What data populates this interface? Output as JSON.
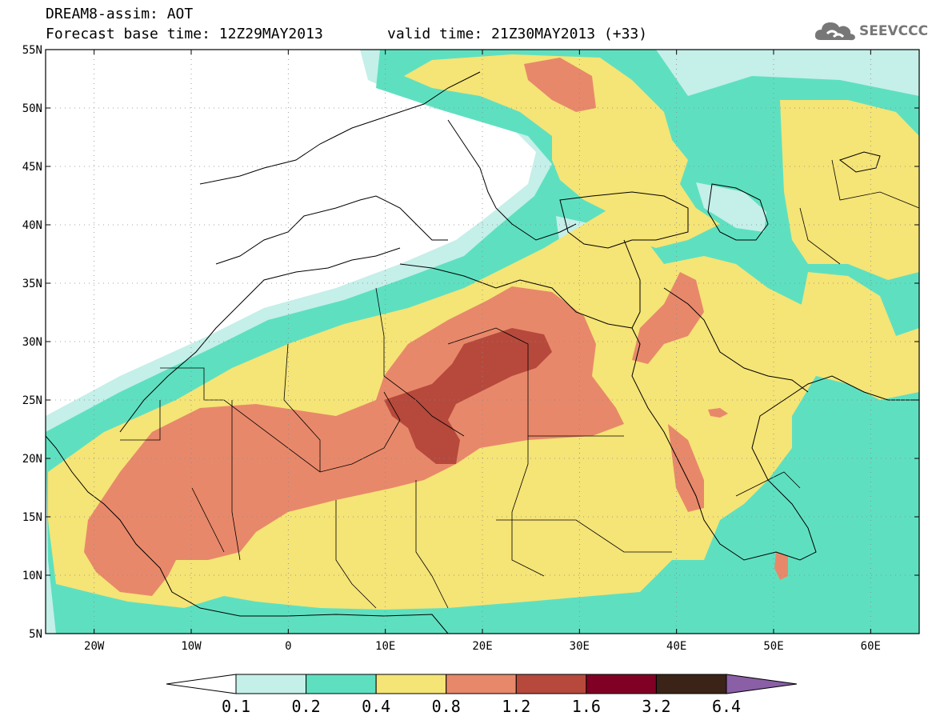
{
  "title": {
    "line1": "DREAM8-assim: AOT",
    "line2": "Forecast base time: 12Z29MAY2013",
    "valid": "valid time: 21Z30MAY2013 (+33)"
  },
  "logo": {
    "text": "SEEVCCC",
    "icon": "cloud-logo-icon",
    "color": "#777777"
  },
  "map": {
    "lon_range": [
      -25,
      65
    ],
    "lat_range": [
      5,
      55
    ],
    "lat_ticks": [
      "5N",
      "10N",
      "15N",
      "20N",
      "25N",
      "30N",
      "35N",
      "40N",
      "45N",
      "50N",
      "55N"
    ],
    "lon_ticks": [
      "20W",
      "10W",
      "0",
      "10E",
      "20E",
      "30E",
      "40E",
      "50E",
      "60E"
    ],
    "grid": "dotted"
  },
  "colorbar": {
    "labels": [
      "0.1",
      "0.2",
      "0.4",
      "0.8",
      "1.2",
      "1.6",
      "3.2",
      "6.4"
    ],
    "colors": [
      "#c5efe9",
      "#5ee0c0",
      "#f5e476",
      "#e8886a",
      "#b6493c",
      "#7f0024",
      "#3b2417",
      "#8a5fa6"
    ],
    "under_color": "#ffffff"
  },
  "legend": {
    "colors": {
      "lt01": "#ffffff",
      "c01": "#c5efe9",
      "c02": "#5ee0c0",
      "c04": "#f5e476",
      "c08": "#e8886a",
      "c12": "#b6493c",
      "c16": "#7f0024"
    }
  }
}
